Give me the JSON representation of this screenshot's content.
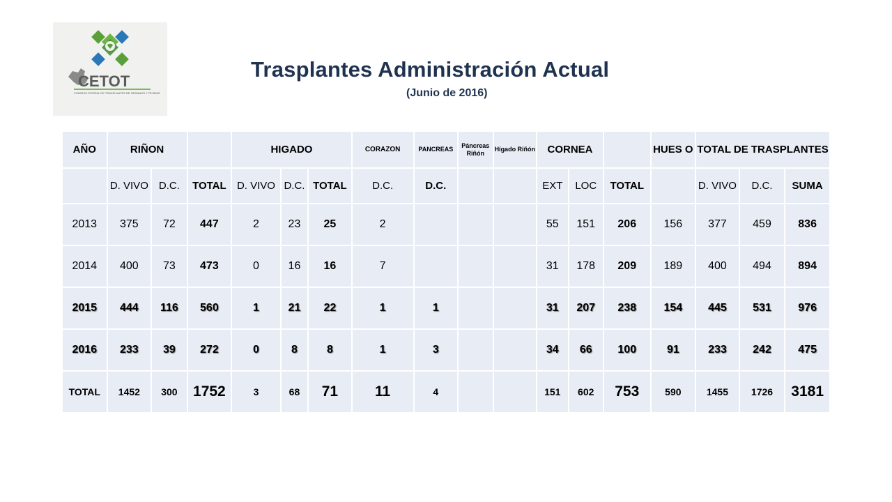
{
  "logo": {
    "name": "CETOT",
    "tagline": "CONSEJO ESTATAL DE TRASPLANTES DE ÓRGANOS Y TEJIDOS"
  },
  "title": "Trasplantes Administración Actual",
  "subtitle": "(Junio de 2016)",
  "header1": {
    "anio": "AÑO",
    "rinon": "RIÑON",
    "higado": "HIGADO",
    "corazon": "CORAZON",
    "pancreas": "PANCREAS",
    "pancreas_rinon": "Páncreas Riñón",
    "higado_rinon": "Hígado Riñón",
    "cornea": "CORNEA",
    "hueso": "HUES O",
    "total_trasplantes": "TOTAL DE TRASPLANTES"
  },
  "header2": [
    "",
    "D. VIVO",
    "D.C.",
    "TOTAL",
    "D. VIVO",
    "D.C.",
    "TOTAL",
    "D.C.",
    "D.C.",
    "",
    "",
    "EXT",
    "LOC",
    "TOTAL",
    "",
    "D. VIVO",
    "D.C.",
    "SUMA"
  ],
  "rows": [
    [
      "2013",
      "375",
      "72",
      "447",
      "2",
      "23",
      "25",
      "2",
      "",
      "",
      "",
      "55",
      "151",
      "206",
      "156",
      "377",
      "459",
      "836"
    ],
    [
      "2014",
      "400",
      "73",
      "473",
      "0",
      "16",
      "16",
      "7",
      "",
      "",
      "",
      "31",
      "178",
      "209",
      "189",
      "400",
      "494",
      "894"
    ],
    [
      "2015",
      "444",
      "116",
      "560",
      "1",
      "21",
      "22",
      "1",
      "1",
      "",
      "",
      "31",
      "207",
      "238",
      "154",
      "445",
      "531",
      "976"
    ],
    [
      "2016",
      "233",
      "39",
      "272",
      "0",
      "8",
      "8",
      "1",
      "3",
      "",
      "",
      "34",
      "66",
      "100",
      "91",
      "233",
      "242",
      "475"
    ]
  ],
  "total_row": [
    "TOTAL",
    "1452",
    "300",
    "1752",
    "3",
    "68",
    "71",
    "11",
    "4",
    "",
    "",
    "151",
    "602",
    "753",
    "590",
    "1455",
    "1726",
    "3181"
  ]
}
